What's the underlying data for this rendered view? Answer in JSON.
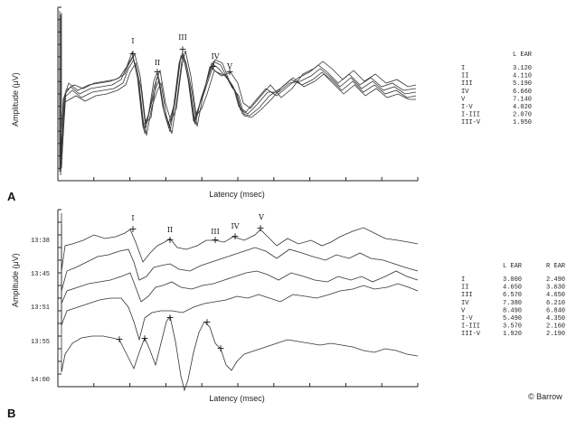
{
  "credit": "© Barrow",
  "chart_data": [
    {
      "type": "line",
      "panel": "A",
      "xlabel": "Latency (msec)",
      "ylabel": "Amplitude (μV)",
      "ticks_x": 10,
      "ticks_y": 14,
      "peak_labels": [
        "I",
        "II",
        "III",
        "IV",
        "V"
      ],
      "table": {
        "headers": [
          "",
          "L EAR"
        ],
        "rows": [
          [
            "I",
            "3.120"
          ],
          [
            "II",
            "4.110"
          ],
          [
            "III",
            "5.190"
          ],
          [
            "IV",
            "6.660"
          ],
          [
            "V",
            "7.140"
          ],
          [
            "I-V",
            "4.020"
          ],
          [
            "I-III",
            "2.070"
          ],
          [
            "III-V",
            "1.950"
          ]
        ]
      }
    },
    {
      "type": "line",
      "panel": "B",
      "xlabel": "Latency (msec)",
      "ylabel": "Amplitude (μV)",
      "ticks_x": 10,
      "ticks_y": 14,
      "peak_labels": [
        "I",
        "II",
        "III",
        "IV",
        "V"
      ],
      "trace_times": [
        "13:38",
        "13:45",
        "13:51",
        "13:55",
        "14:00"
      ],
      "table": {
        "headers": [
          "",
          "L EAR",
          "R EAR"
        ],
        "rows": [
          [
            "I",
            "3.000",
            "2.490"
          ],
          [
            "II",
            "4.650",
            "3.630"
          ],
          [
            "III",
            "6.570",
            "4.650"
          ],
          [
            "IV",
            "7.380",
            "6.210"
          ],
          [
            "V",
            "8.490",
            "6.840"
          ],
          [
            "I-V",
            "5.490",
            "4.350"
          ],
          [
            "I-III",
            "3.570",
            "2.160"
          ],
          [
            "III-V",
            "1.920",
            "2.190"
          ]
        ]
      }
    }
  ]
}
